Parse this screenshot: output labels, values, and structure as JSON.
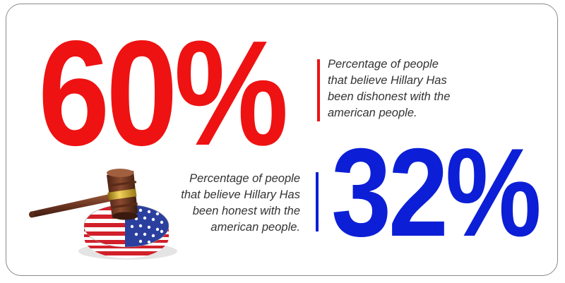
{
  "stat_dishonest": {
    "value": "60%",
    "caption_lines": [
      "Percentage of people",
      "that believe Hillary Has",
      "been dishonest with the",
      "american people."
    ],
    "color": "#ee1212"
  },
  "stat_honest": {
    "value": "32%",
    "caption_lines": [
      "Percentage of people",
      "that believe Hillary Has",
      "been honest with the",
      "american people."
    ],
    "color": "#0c1fd6"
  },
  "illustration": {
    "icon": "gavel-icon",
    "base_pattern": "american-flag"
  }
}
